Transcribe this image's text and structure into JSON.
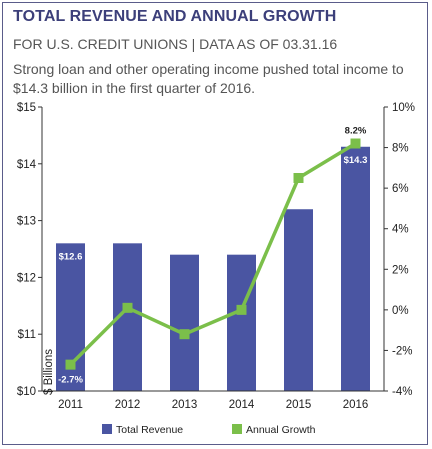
{
  "header": {
    "title": "TOTAL REVENUE AND ANNUAL GROWTH",
    "subtitle": "FOR U.S. CREDIT UNIONS | DATA AS OF 03.31.16",
    "description": "Strong loan and other operating income pushed total income to $14.3 billion in the first quarter of 2016."
  },
  "chart_data": {
    "type": "bar",
    "categories": [
      "2011",
      "2012",
      "2013",
      "2014",
      "2015",
      "2016"
    ],
    "series": [
      {
        "name": "Total Revenue",
        "kind": "bar",
        "axis": "left",
        "color": "#4a55a2",
        "values": [
          12.6,
          12.6,
          12.4,
          12.4,
          13.2,
          14.3
        ]
      },
      {
        "name": "Annual Growth",
        "kind": "line",
        "axis": "right",
        "color": "#7bbf4a",
        "values": [
          -2.7,
          0.1,
          -1.2,
          0.0,
          6.5,
          8.2
        ]
      }
    ],
    "data_labels": [
      {
        "series": "Total Revenue",
        "category": "2011",
        "text": "$12.6"
      },
      {
        "series": "Total Revenue",
        "category": "2016",
        "text": "$14.3"
      },
      {
        "series": "Annual Growth",
        "category": "2011",
        "text": "-2.7%"
      },
      {
        "series": "Annual Growth",
        "category": "2016",
        "text": "8.2%"
      }
    ],
    "y_left": {
      "label": "$ Billions",
      "lim": [
        10,
        15
      ],
      "ticks": [
        10,
        11,
        12,
        13,
        14,
        15
      ],
      "tick_labels": [
        "$10",
        "$11",
        "$12",
        "$13",
        "$14",
        "$15"
      ]
    },
    "y_right": {
      "lim": [
        -4,
        10
      ],
      "ticks": [
        -4,
        -2,
        0,
        2,
        4,
        6,
        8,
        10
      ],
      "tick_labels": [
        "-4%",
        "-2%",
        "0%",
        "2%",
        "4%",
        "6%",
        "8%",
        "10%"
      ]
    },
    "grid": false,
    "legend_position": "bottom-center",
    "legend": [
      "Total Revenue",
      "Annual Growth"
    ]
  }
}
